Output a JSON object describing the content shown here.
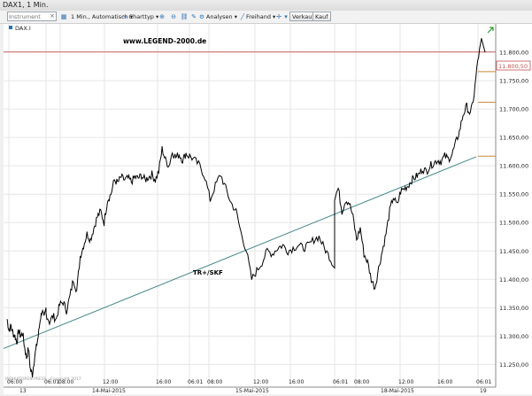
{
  "window": {
    "title": "DAX1, 1 Min."
  },
  "toolbar": {
    "instrument_placeholder": "Instrument",
    "interval_label": "1 Min., Automatisch",
    "charttype_label": "Charttyp",
    "analysen_label": "Analysen",
    "freihand_label": "Freihand",
    "verkauf_label": "Verkauf",
    "kauf_label": "Kauf"
  },
  "chart": {
    "symbol_label": "DAX.I",
    "watermark": "www.LEGEND-2000.de",
    "trendline_label": "TR+/SKF",
    "footer_text": "INDIKATOREN PRESS · Copyright 2017",
    "current_price_label": "11.800,50"
  },
  "chart_data": {
    "type": "line",
    "title": "",
    "ylim": [
      11210,
      11850
    ],
    "y_ticks": [
      "11.250,00",
      "11.300,00",
      "11.350,00",
      "11.400,00",
      "11.450,00",
      "11.500,00",
      "11.550,00",
      "11.600,00",
      "11.650,00",
      "11.700,00",
      "11.750,00",
      "11.800,00"
    ],
    "x_ticks": [
      "06:00",
      "06:01",
      "08:00",
      "12:00",
      "16:00",
      "06:01",
      "08:00",
      "12:00",
      "16:00",
      "06:01",
      "08:00",
      "12:00",
      "16:00",
      "06:01"
    ],
    "date_labels": [
      "13",
      "14-Mai-2015",
      "15-Mai-2015",
      "18-Mai-2015",
      "19"
    ],
    "current_price": 11800.5,
    "horizontal_levels": [
      11800.5,
      11766,
      11712,
      11617
    ],
    "trendline": {
      "from": 11278,
      "to": 11616
    },
    "series": [
      {
        "points": [
          [
            11330,
            11310,
            11318,
            11305,
            11300,
            11290,
            11310,
            11300,
            11305,
            11280,
            11262,
            11278,
            11240,
            11232,
            11260,
            11280,
            11300,
            11330,
            11345,
            11330,
            11350
          ],
          [
            11340,
            11325,
            11335,
            11330,
            11355,
            11360,
            11345,
            11370,
            11400,
            11380,
            11440,
            11460,
            11480,
            11470,
            11490,
            11510,
            11520,
            11500,
            11540,
            11550,
            11575,
            11570,
            11580,
            11575,
            11578,
            11572,
            11580,
            11578,
            11583,
            11575,
            11580,
            11585,
            11575,
            11590,
            11630,
            11610,
            11600,
            11625,
            11615,
            11620,
            11610,
            11622,
            11616
          ],
          [
            11618,
            11610,
            11600,
            11580,
            11540,
            11565,
            11585,
            11560,
            11535,
            11520,
            11480,
            11450,
            11400,
            11415,
            11430,
            11450,
            11445,
            11455,
            11460,
            11450,
            11455,
            11460,
            11455,
            11460,
            11470,
            11475,
            11455,
            11440,
            11420
          ],
          [
            11545,
            11560,
            11520,
            11540,
            11535,
            11510,
            11470,
            11490,
            11445,
            11430,
            11400,
            11385,
            11420,
            11450,
            11480,
            11520,
            11545,
            11530,
            11555,
            11560,
            11565,
            11575,
            11580,
            11585,
            11595,
            11590,
            11600,
            11605,
            11610,
            11608,
            11617,
            11612,
            11620,
            11640,
            11660,
            11690,
            11705,
            11690,
            11725,
            11785,
            11820,
            11800
          ]
        ]
      }
    ]
  }
}
